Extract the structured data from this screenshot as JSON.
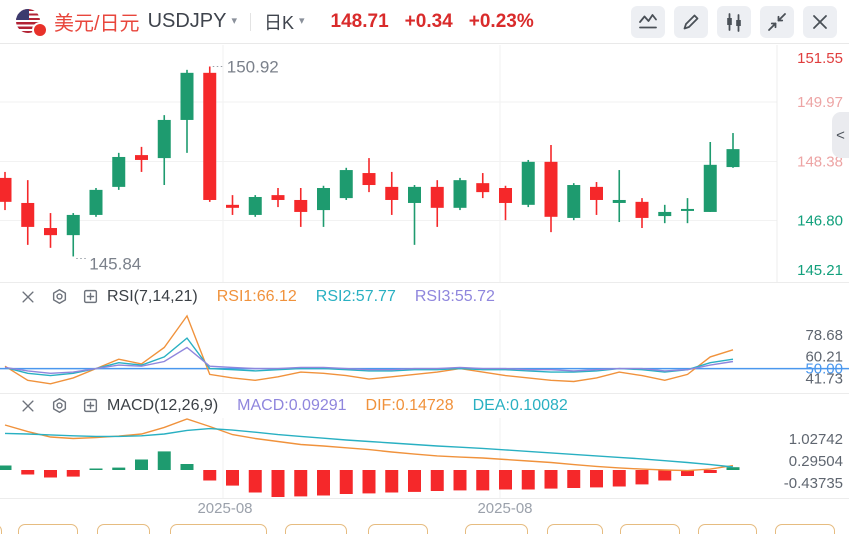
{
  "header": {
    "instrument": {
      "name": "美元/日元",
      "symbol": "USDJPY",
      "name_color": "#e8463c"
    },
    "period": "日K",
    "quote": {
      "last": "148.71",
      "change": "+0.34",
      "change_pct": "+0.23%",
      "color": "#d92b2b"
    },
    "toolbar_icons": [
      "indicator-line-icon",
      "draw-icon",
      "candlestick-icon",
      "collapse-icon",
      "close-icon"
    ]
  },
  "side_tab": {
    "chevron": "<"
  },
  "rsi_panel": {
    "title": "RSI(7,14,21)",
    "legend": [
      {
        "label": "RSI1:66.12",
        "color": "#f0923c"
      },
      {
        "label": "RSI2:57.77",
        "color": "#29b0c2"
      },
      {
        "label": "RSI3:55.72",
        "color": "#8f86dd"
      }
    ]
  },
  "macd_panel": {
    "title": "MACD(12,26,9)",
    "legend": [
      {
        "label": "MACD:0.09291",
        "color": "#8f86dd"
      },
      {
        "label": "DIF:0.14728",
        "color": "#f0923c"
      },
      {
        "label": "DEA:0.10082",
        "color": "#29b0c2"
      }
    ]
  },
  "x_axis": {
    "color": "#9ba1ab",
    "labels": [
      {
        "text": "2025-08",
        "x": 225
      },
      {
        "text": "2025-08",
        "x": 505
      }
    ]
  },
  "bottom_buttons": {
    "border_color": "#e6bc80",
    "items": [
      {
        "x": -12,
        "w": 14
      },
      {
        "x": 18,
        "w": 60
      },
      {
        "x": 97,
        "w": 53
      },
      {
        "x": 170,
        "w": 97
      },
      {
        "x": 285,
        "w": 62
      },
      {
        "x": 368,
        "w": 60
      },
      {
        "x": 465,
        "w": 63
      },
      {
        "x": 547,
        "w": 56
      },
      {
        "x": 620,
        "w": 60
      },
      {
        "x": 698,
        "w": 59
      },
      {
        "x": 775,
        "w": 60
      }
    ]
  },
  "chart_data": [
    {
      "type": "candlestick",
      "title": "USDJPY 日K",
      "x_layout": {
        "x_start": 5,
        "x_step": 22.75,
        "body_width": 13
      },
      "plot_right": 777,
      "grid_x": [
        223,
        500
      ],
      "colors": {
        "up": "#1e9b6f",
        "down": "#f5282a"
      },
      "y_axis": {
        "panel_top": 45,
        "panel_bottom": 283,
        "price_top": 151.494,
        "price_bottom": 145.13,
        "labels": [
          {
            "text": "151.55",
            "value": 151.55,
            "color": "#e03e3e"
          },
          {
            "text": "149.97",
            "value": 149.97,
            "color": "#eda4a4"
          },
          {
            "text": "148.38",
            "value": 148.38,
            "color": "#eda4a4"
          },
          {
            "text": "146.80",
            "value": 146.8,
            "color": "#12a07c"
          },
          {
            "text": "145.21",
            "value": 145.21,
            "color": "#12a07c"
          }
        ]
      },
      "high_label": {
        "text": "150.92",
        "candle_index": 9
      },
      "low_label": {
        "text": "145.84",
        "candle_index": 3
      },
      "candles": [
        [
          147.94,
          148.1,
          147.08,
          147.3
        ],
        [
          147.27,
          147.88,
          146.15,
          146.63
        ],
        [
          146.6,
          147.0,
          146.07,
          146.41
        ],
        [
          146.41,
          147.0,
          145.84,
          146.95
        ],
        [
          146.95,
          147.67,
          146.9,
          147.62
        ],
        [
          147.7,
          148.61,
          147.62,
          148.5
        ],
        [
          148.55,
          148.77,
          148.1,
          148.42
        ],
        [
          148.47,
          149.62,
          147.75,
          149.49
        ],
        [
          149.49,
          150.83,
          148.61,
          150.75
        ],
        [
          150.75,
          150.92,
          147.3,
          147.35
        ],
        [
          147.22,
          147.48,
          146.95,
          147.14
        ],
        [
          146.95,
          147.48,
          146.9,
          147.43
        ],
        [
          147.48,
          147.67,
          147.16,
          147.35
        ],
        [
          147.35,
          147.67,
          146.63,
          147.03
        ],
        [
          147.08,
          147.73,
          146.63,
          147.67
        ],
        [
          147.4,
          148.21,
          147.35,
          148.15
        ],
        [
          148.07,
          148.47,
          147.56,
          147.75
        ],
        [
          147.7,
          148.1,
          146.95,
          147.35
        ],
        [
          147.27,
          147.75,
          146.15,
          147.7
        ],
        [
          147.7,
          147.88,
          146.63,
          147.14
        ],
        [
          147.14,
          147.94,
          147.08,
          147.88
        ],
        [
          147.8,
          148.07,
          147.4,
          147.56
        ],
        [
          147.67,
          147.73,
          146.81,
          147.27
        ],
        [
          147.22,
          148.42,
          147.16,
          148.37
        ],
        [
          148.37,
          148.82,
          146.49,
          146.9
        ],
        [
          146.87,
          147.8,
          146.81,
          147.75
        ],
        [
          147.7,
          147.83,
          146.95,
          147.35
        ],
        [
          147.27,
          148.15,
          146.76,
          147.35
        ],
        [
          147.3,
          147.4,
          146.6,
          146.87
        ],
        [
          146.92,
          147.22,
          146.73,
          147.03
        ],
        [
          147.06,
          147.4,
          146.73,
          147.11
        ],
        [
          147.03,
          148.9,
          147.03,
          148.29
        ],
        [
          148.23,
          149.14,
          148.21,
          148.71
        ]
      ]
    },
    {
      "type": "line",
      "name": "RSI(7,14,21)",
      "panel": {
        "top": 310,
        "bottom": 392
      },
      "range": {
        "min": 30,
        "max": 100
      },
      "level_line": {
        "value": 50,
        "color": "#4a97ee"
      },
      "axis_labels": [
        {
          "text": "78.68",
          "value": 78.68,
          "color": "#5f6670"
        },
        {
          "text": "60.21",
          "value": 60.21,
          "color": "#5f6670"
        },
        {
          "text": "50.00",
          "value": 50.0,
          "color": "#4a97ee"
        },
        {
          "text": "41.73",
          "value": 41.73,
          "color": "#5f6670"
        }
      ],
      "series": [
        {
          "name": "RSI1",
          "color": "#f0923c",
          "values": [
            52,
            40,
            37,
            42,
            50,
            58,
            54,
            68,
            95,
            45,
            42,
            40,
            43,
            47,
            46,
            44,
            41,
            43,
            45,
            47,
            50,
            47,
            44,
            42,
            40,
            39,
            42,
            47,
            44,
            40,
            45,
            60,
            66
          ]
        },
        {
          "name": "RSI2",
          "color": "#29b0c2",
          "values": [
            51,
            46,
            44,
            46,
            50,
            55,
            53,
            60,
            76,
            50,
            49,
            48,
            49,
            50,
            50,
            49,
            48,
            48,
            49,
            49,
            50,
            49,
            49,
            48,
            47,
            47,
            48,
            50,
            49,
            47,
            49,
            55,
            58
          ]
        },
        {
          "name": "RSI3",
          "color": "#8f86dd",
          "values": [
            51,
            48,
            46,
            47,
            50,
            53,
            52,
            56,
            68,
            52,
            51,
            50,
            50,
            51,
            51,
            50,
            49,
            49,
            50,
            50,
            51,
            50,
            50,
            49,
            49,
            48,
            49,
            50,
            50,
            48,
            49,
            53,
            56
          ]
        }
      ]
    },
    {
      "type": "macd",
      "name": "MACD(12,26,9)",
      "panel": {
        "top": 418,
        "bottom": 498
      },
      "range": {
        "min": -0.9333,
        "max": 1.7333
      },
      "colors": {
        "pos": "#1e9b6f",
        "neg": "#f5282a",
        "dif": "#f0923c",
        "dea": "#29b0c2"
      },
      "axis_labels": [
        {
          "text": "1.02742",
          "value": 1.02742,
          "color": "#5f6670"
        },
        {
          "text": "0.29504",
          "value": 0.29504,
          "color": "#5f6670"
        },
        {
          "text": "-0.43735",
          "value": -0.43735,
          "color": "#5f6670"
        }
      ],
      "hist": [
        0.15,
        -0.15,
        -0.25,
        -0.22,
        0.05,
        0.08,
        0.35,
        0.62,
        0.2,
        -0.35,
        -0.52,
        -0.75,
        -0.9,
        -0.88,
        -0.85,
        -0.8,
        -0.78,
        -0.75,
        -0.73,
        -0.7,
        -0.68,
        -0.68,
        -0.65,
        -0.65,
        -0.62,
        -0.6,
        -0.58,
        -0.55,
        -0.48,
        -0.35,
        -0.2,
        -0.1,
        0.093
      ],
      "dif": [
        1.5,
        1.28,
        1.1,
        1.05,
        1.08,
        1.13,
        1.2,
        1.42,
        1.7,
        1.45,
        1.18,
        1.05,
        0.95,
        0.85,
        0.8,
        0.74,
        0.68,
        0.6,
        0.53,
        0.47,
        0.43,
        0.4,
        0.35,
        0.3,
        0.25,
        0.18,
        0.12,
        0.07,
        0.03,
        0.0,
        -0.02,
        0.03,
        0.147
      ],
      "dea": [
        1.22,
        1.2,
        1.17,
        1.14,
        1.12,
        1.12,
        1.14,
        1.2,
        1.32,
        1.38,
        1.33,
        1.26,
        1.18,
        1.12,
        1.06,
        1.0,
        0.95,
        0.9,
        0.85,
        0.8,
        0.76,
        0.72,
        0.67,
        0.62,
        0.57,
        0.52,
        0.47,
        0.42,
        0.37,
        0.31,
        0.25,
        0.18,
        0.101
      ]
    }
  ]
}
